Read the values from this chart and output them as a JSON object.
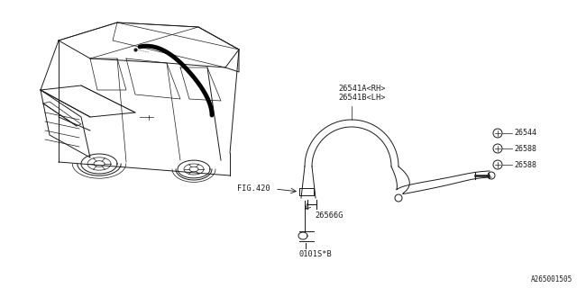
{
  "bg_color": "#ffffff",
  "line_color": "#1a1a1a",
  "text_color": "#1a1a1a",
  "diagram_id": "A265001505",
  "labels": {
    "26541AB": "26541A<RH>\n26541B<LH>",
    "26544": "26544",
    "26588_top": "26588",
    "26588_bot": "26588",
    "26566G": "26566G",
    "FIG420": "FIG.420",
    "0101SB": "0101S*B"
  },
  "figsize": [
    6.4,
    3.2
  ],
  "dpi": 100
}
